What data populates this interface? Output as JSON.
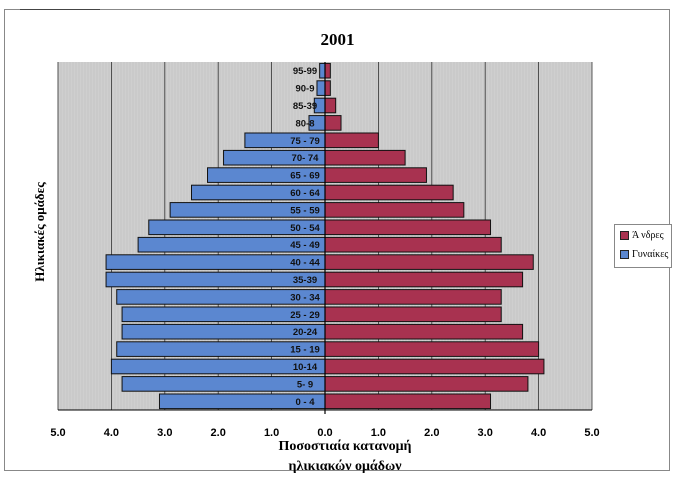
{
  "colors": {
    "men": "#a83250",
    "women": "#5b87d0",
    "plot_background": "#cfcfcf"
  },
  "chart_data": {
    "type": "bar",
    "title": "2001",
    "ylabel": "Ηλικιακές ομάδες",
    "xlabel_lines": [
      "Ποσοστιαία κατανομή",
      "ηλικιακών ομάδων"
    ],
    "xlim": [
      -5.0,
      5.0
    ],
    "x_tick_labels": [
      "5.0",
      "4.0",
      "3.0",
      "2.0",
      "1.0",
      "0.0",
      "1.0",
      "2.0",
      "3.0",
      "4.0",
      "5.0"
    ],
    "categories": [
      "0 - 4",
      "5- 9",
      "10-14",
      "15 - 19",
      "20-24",
      "25 - 29",
      "30 - 34",
      "35-39",
      "40 - 44",
      "45 - 49",
      "50 - 54",
      "55 - 59",
      "60 - 64",
      "65 - 69",
      "70- 74",
      "75 - 79",
      "80-8",
      "85-39",
      "90-9",
      "95-99"
    ],
    "series": [
      {
        "name": "Ά νδρες",
        "values": [
          3.1,
          3.8,
          4.1,
          4.0,
          3.7,
          3.3,
          3.3,
          3.7,
          3.9,
          3.3,
          3.1,
          2.6,
          2.4,
          1.9,
          1.5,
          1.0,
          0.3,
          0.2,
          0.1,
          0.1
        ]
      },
      {
        "name": "Γυναίκες",
        "values": [
          3.1,
          3.8,
          4.0,
          3.9,
          3.8,
          3.8,
          3.9,
          4.1,
          4.1,
          3.5,
          3.3,
          2.9,
          2.5,
          2.2,
          1.9,
          1.5,
          0.3,
          0.2,
          0.15,
          0.1
        ]
      }
    ],
    "legend_position": "right",
    "grid": true
  }
}
